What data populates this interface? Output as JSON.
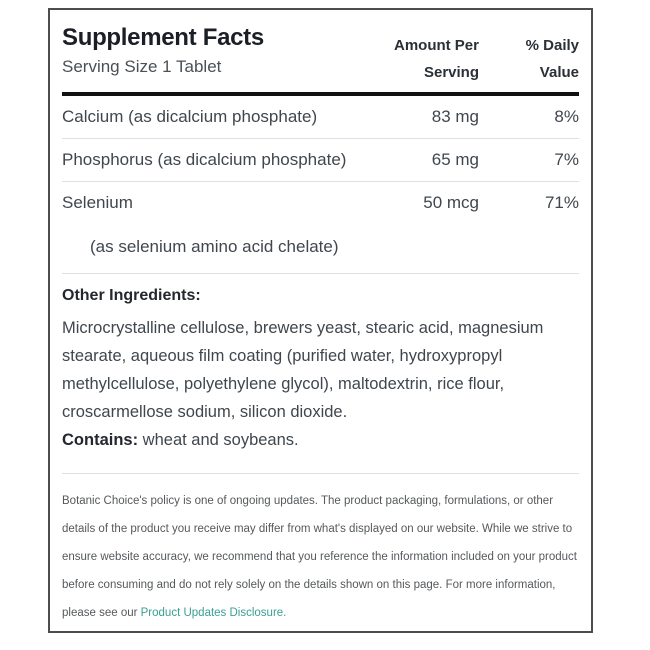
{
  "panel": {
    "title": "Supplement Facts",
    "serving_size": "Serving Size 1 Tablet",
    "columns": {
      "amount_line1": "Amount Per",
      "amount_line2": "Serving",
      "dv_line1": "% Daily",
      "dv_line2": "Value"
    },
    "nutrients": [
      {
        "name": "Calcium (as dicalcium phosphate)",
        "amount": "83 mg",
        "dv": "8%"
      },
      {
        "name": "Phosphorus (as dicalcium phosphate)",
        "amount": "65 mg",
        "dv": "7%"
      },
      {
        "name": "Selenium",
        "amount": "50 mcg",
        "dv": "71%"
      }
    ],
    "selenium_note": "(as selenium amino acid chelate)",
    "other_ingredients": {
      "heading": "Other Ingredients:",
      "text": "Microcrystalline cellulose, brewers yeast, stearic acid, magnesium stearate, aqueous film coating (purified water, hydroxypropyl methylcellulose, polyethylene glycol), maltodextrin, rice flour, croscarmellose sodium, silicon dioxide."
    },
    "contains": {
      "label": "Contains:",
      "text": " wheat and soybeans."
    },
    "disclaimer": {
      "text": "Botanic Choice's policy is one of ongoing updates. The product packaging, formulations, or other details of the product you receive may differ from what's displayed on our website. While we strive to ensure website accuracy, we recommend that you reference the information included on your product before consuming and do not rely solely on the details shown on this page. For more information, please see our ",
      "link_text": "Product Updates Disclosure."
    }
  },
  "colors": {
    "title_text": "#1c1e27",
    "body_text": "#3f464d",
    "disclaimer_text": "#55595c",
    "link_accent": "#38a093",
    "thick_bar": "#111111",
    "divider": "#e0e0e0",
    "panel_border": "#4d4d4d"
  }
}
